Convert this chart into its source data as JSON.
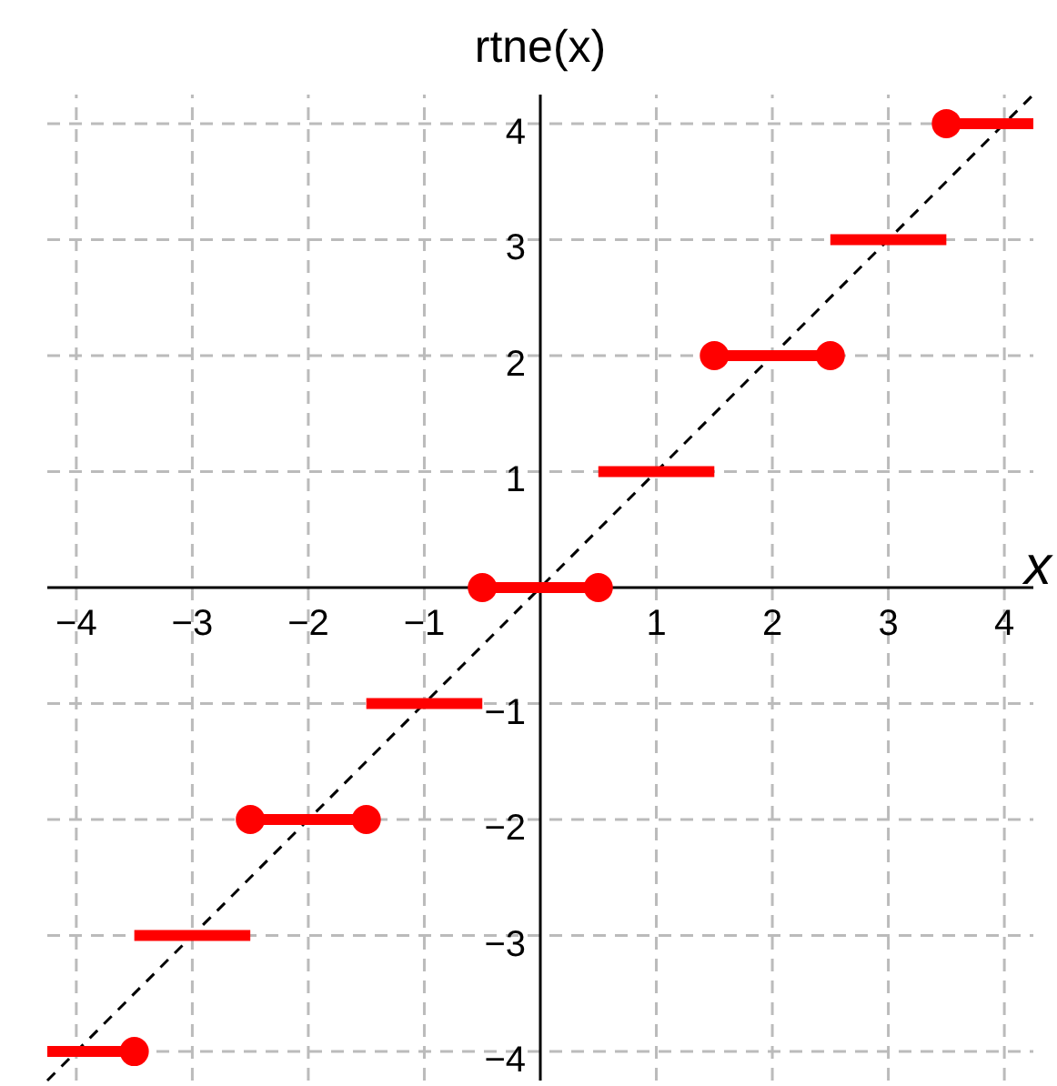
{
  "chart_data": {
    "type": "line",
    "ylabel": "rtne(x)",
    "xlabel": "x",
    "xlim": [
      -4.25,
      4.25
    ],
    "ylim": [
      -4.25,
      4.25
    ],
    "xticks": [
      -4,
      -3,
      -2,
      -1,
      1,
      2,
      3,
      4
    ],
    "yticks": [
      -4,
      -3,
      -2,
      -1,
      1,
      2,
      3,
      4
    ],
    "grid": true,
    "series": [
      {
        "color": "#000000",
        "line_style": "dashed",
        "marker": "none",
        "x": [
          -4.25,
          4.25
        ],
        "values": [
          -4.25,
          4.25
        ]
      },
      {
        "color": "#ff0000",
        "line_style": "solid",
        "marker": "none",
        "x": [
          -4.25,
          -3.5
        ],
        "values": [
          -4,
          -4
        ]
      },
      {
        "color": "#ff0000",
        "line_style": "solid",
        "marker": "none",
        "x": [
          -3.5,
          -2.5
        ],
        "values": [
          -3,
          -3
        ]
      },
      {
        "color": "#ff0000",
        "line_style": "solid",
        "marker": "none",
        "x": [
          -2.5,
          -1.5
        ],
        "values": [
          -2,
          -2
        ]
      },
      {
        "color": "#ff0000",
        "line_style": "solid",
        "marker": "none",
        "x": [
          -1.5,
          -0.5
        ],
        "values": [
          -1,
          -1
        ]
      },
      {
        "color": "#ff0000",
        "line_style": "solid",
        "marker": "none",
        "x": [
          -0.5,
          0.5
        ],
        "values": [
          0,
          0
        ]
      },
      {
        "color": "#ff0000",
        "line_style": "solid",
        "marker": "none",
        "x": [
          0.5,
          1.5
        ],
        "values": [
          1,
          1
        ]
      },
      {
        "color": "#ff0000",
        "line_style": "solid",
        "marker": "none",
        "x": [
          1.5,
          2.5
        ],
        "values": [
          2,
          2
        ]
      },
      {
        "color": "#ff0000",
        "line_style": "solid",
        "marker": "none",
        "x": [
          2.5,
          3.5
        ],
        "values": [
          3,
          3
        ]
      },
      {
        "color": "#ff0000",
        "line_style": "solid",
        "marker": "none",
        "x": [
          3.5,
          4.25
        ],
        "values": [
          4,
          4
        ]
      },
      {
        "type": "scatter",
        "color": "#ff0000",
        "marker": "circle",
        "x": [
          -3.5,
          -2.5,
          -1.5,
          -0.5,
          0.5,
          1.5,
          2.5,
          3.5
        ],
        "values": [
          -4,
          -2,
          -2,
          0,
          0,
          2,
          2,
          4
        ]
      }
    ]
  }
}
